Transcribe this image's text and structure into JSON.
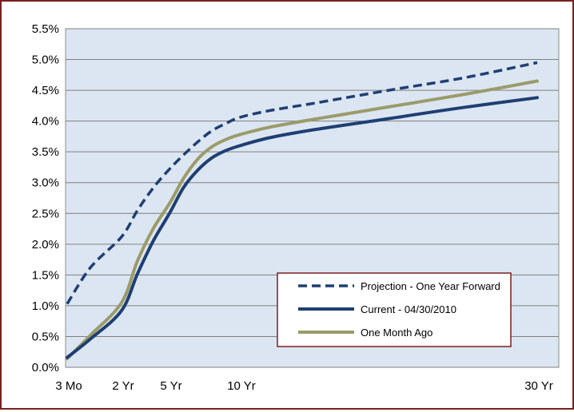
{
  "chart_data": {
    "type": "line",
    "title": "",
    "xlabel": "",
    "ylabel": "",
    "y_unit": "%",
    "ylim": [
      0,
      5.5
    ],
    "y_ticks": [
      "0.0%",
      "0.5%",
      "1.0%",
      "1.5%",
      "2.0%",
      "2.5%",
      "3.0%",
      "3.5%",
      "4.0%",
      "4.5%",
      "5.0%",
      "5.5%"
    ],
    "y_tick_values": [
      0,
      0.5,
      1,
      1.5,
      2,
      2.5,
      3,
      3.5,
      4,
      4.5,
      5,
      5.5
    ],
    "x_ticks": [
      {
        "label": "3 Mo",
        "years": 0.25
      },
      {
        "label": "2 Yr",
        "years": 2
      },
      {
        "label": "5 Yr",
        "years": 5
      },
      {
        "label": "10 Yr",
        "years": 10
      },
      {
        "label": "30 Yr",
        "years": 30
      }
    ],
    "grid": true,
    "legend_position": "bottom-right",
    "plot_background": "#dce6f2",
    "series": [
      {
        "name": "Projection - One Year Forward",
        "style": "dashed",
        "color": "#1f3f73",
        "x": [
          0.25,
          1,
          2,
          3,
          4,
          5,
          6,
          7,
          8,
          9,
          10,
          12,
          15,
          20,
          25,
          30
        ],
        "y": [
          1.03,
          1.62,
          2.12,
          2.55,
          2.92,
          3.22,
          3.45,
          3.66,
          3.84,
          3.96,
          4.06,
          4.17,
          4.29,
          4.5,
          4.7,
          4.95
        ]
      },
      {
        "name": "Current - 04/30/2010",
        "style": "solid",
        "color": "#1f3f73",
        "x": [
          0.25,
          1,
          2,
          3,
          4,
          5,
          6,
          7,
          8,
          9,
          10,
          12,
          15,
          20,
          25,
          30
        ],
        "y": [
          0.16,
          0.46,
          0.92,
          1.52,
          2.06,
          2.5,
          2.92,
          3.2,
          3.4,
          3.52,
          3.6,
          3.73,
          3.86,
          4.04,
          4.22,
          4.38
        ]
      },
      {
        "name": "One Month Ago",
        "style": "solid",
        "color": "#9b9b6a",
        "x": [
          0.25,
          1,
          2,
          3,
          4,
          5,
          6,
          7,
          8,
          9,
          10,
          12,
          15,
          20,
          25,
          30
        ],
        "y": [
          0.14,
          0.52,
          1.05,
          1.73,
          2.26,
          2.66,
          3.07,
          3.38,
          3.58,
          3.7,
          3.78,
          3.9,
          4.03,
          4.23,
          4.43,
          4.65
        ]
      }
    ]
  }
}
